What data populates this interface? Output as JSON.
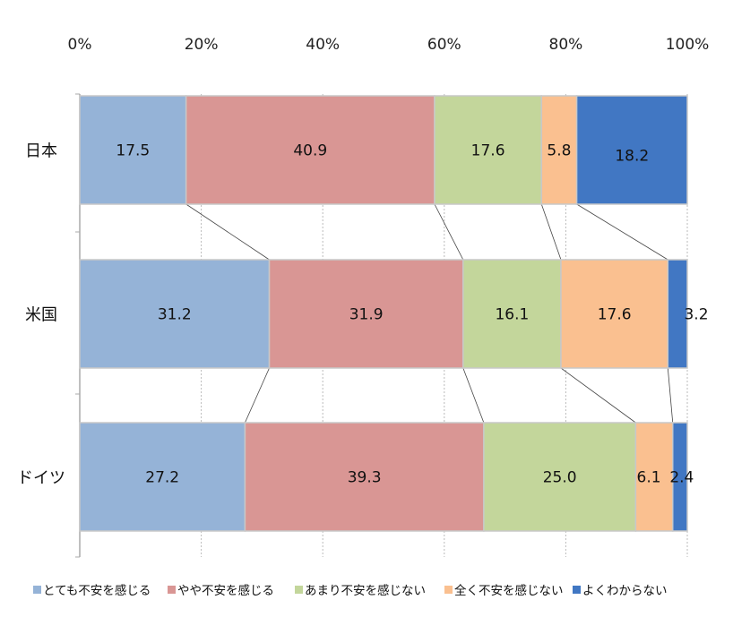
{
  "chart_data": {
    "type": "bar",
    "orientation": "horizontal",
    "stacked": "100%",
    "categories": [
      "日本",
      "米国",
      "ドイツ"
    ],
    "xlim": [
      0,
      100
    ],
    "xticks": [
      "0%",
      "20%",
      "40%",
      "60%",
      "80%",
      "100%"
    ],
    "grid": "vertical dashed",
    "legend": "bottom",
    "series_lines": true,
    "series": [
      {
        "name": "とても不安を感じる",
        "color": "#95B3D7",
        "values": [
          17.5,
          31.2,
          27.2
        ]
      },
      {
        "name": "やや不安を感じる",
        "color": "#D99694",
        "values": [
          40.9,
          31.9,
          39.3
        ]
      },
      {
        "name": "あまり不安を感じない",
        "color": "#C3D69B",
        "values": [
          17.6,
          16.1,
          25.0
        ]
      },
      {
        "name": "全く不安を感じない",
        "color": "#FAC090",
        "values": [
          5.8,
          17.6,
          6.1
        ]
      },
      {
        "name": "よくわからない",
        "color": "#4177C3",
        "values": [
          18.2,
          3.2,
          2.4
        ]
      }
    ]
  }
}
